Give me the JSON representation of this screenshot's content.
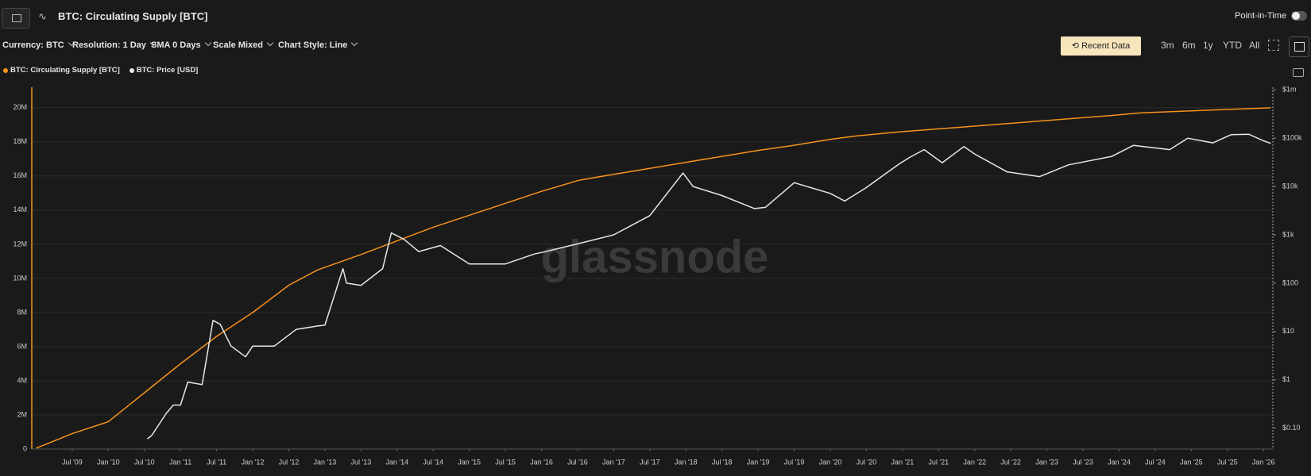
{
  "header": {
    "title": "BTC: Circulating Supply [BTC]",
    "point_in_time": "Point-in-Time"
  },
  "toolbar": {
    "options": [
      "Currency: BTC",
      "Resolution: 1 Day",
      "SMA 0 Days",
      "Scale Mixed",
      "Chart Style: Line"
    ],
    "recent_data": "Recent Data",
    "ranges": [
      "3m",
      "6m",
      "1y",
      "YTD",
      "All"
    ]
  },
  "watermark": "glassnode",
  "chart_data": {
    "type": "line",
    "grid": true,
    "xlim": [
      2008.94,
      2026.13
    ],
    "xticks": [
      {
        "value": 2009.5,
        "label": "Jul '09"
      },
      {
        "value": 2010.0,
        "label": "Jan '10"
      },
      {
        "value": 2010.5,
        "label": "Jul '10"
      },
      {
        "value": 2011.0,
        "label": "Jan '11"
      },
      {
        "value": 2011.5,
        "label": "Jul '11"
      },
      {
        "value": 2012.0,
        "label": "Jan '12"
      },
      {
        "value": 2012.5,
        "label": "Jul '12"
      },
      {
        "value": 2013.0,
        "label": "Jan '13"
      },
      {
        "value": 2013.5,
        "label": "Jul '13"
      },
      {
        "value": 2014.0,
        "label": "Jan '14"
      },
      {
        "value": 2014.5,
        "label": "Jul '14"
      },
      {
        "value": 2015.0,
        "label": "Jan '15"
      },
      {
        "value": 2015.5,
        "label": "Jul '15"
      },
      {
        "value": 2016.0,
        "label": "Jan '16"
      },
      {
        "value": 2016.5,
        "label": "Jul '16"
      },
      {
        "value": 2017.0,
        "label": "Jan '17"
      },
      {
        "value": 2017.5,
        "label": "Jul '17"
      },
      {
        "value": 2018.0,
        "label": "Jan '18"
      },
      {
        "value": 2018.5,
        "label": "Jul '18"
      },
      {
        "value": 2019.0,
        "label": "Jan '19"
      },
      {
        "value": 2019.5,
        "label": "Jul '19"
      },
      {
        "value": 2020.0,
        "label": "Jan '20"
      },
      {
        "value": 2020.5,
        "label": "Jul '20"
      },
      {
        "value": 2021.0,
        "label": "Jan '21"
      },
      {
        "value": 2021.5,
        "label": "Jul '21"
      },
      {
        "value": 2022.0,
        "label": "Jan '22"
      },
      {
        "value": 2022.5,
        "label": "Jul '22"
      },
      {
        "value": 2023.0,
        "label": "Jan '23"
      },
      {
        "value": 2023.5,
        "label": "Jul '23"
      },
      {
        "value": 2024.0,
        "label": "Jan '24"
      },
      {
        "value": 2024.5,
        "label": "Jul '24"
      },
      {
        "value": 2025.0,
        "label": "Jan '25"
      },
      {
        "value": 2025.5,
        "label": "Jul '25"
      },
      {
        "value": 2026.0,
        "label": "Jan '26"
      }
    ],
    "ylim": [
      0,
      21200000
    ],
    "yticks": [
      0,
      {
        "value": 2000000,
        "label": "2M"
      },
      {
        "value": 4000000,
        "label": "4M"
      },
      {
        "value": 6000000,
        "label": "6M"
      },
      {
        "value": 8000000,
        "label": "8M"
      },
      {
        "value": 10000000,
        "label": "10M"
      },
      {
        "value": 12000000,
        "label": "12M"
      },
      {
        "value": 14000000,
        "label": "14M"
      },
      {
        "value": 16000000,
        "label": "16M"
      },
      {
        "value": 18000000,
        "label": "18M"
      },
      {
        "value": 20000000,
        "label": "20M"
      }
    ],
    "y2lim": [
      0.037,
      1130000
    ],
    "y2log": true,
    "y2ticks": [
      {
        "value": 0.1,
        "label": "$0.10"
      },
      {
        "value": 1,
        "label": "$1"
      },
      {
        "value": 10,
        "label": "$10"
      },
      {
        "value": 100,
        "label": "$100"
      },
      {
        "value": 1000,
        "label": "$1k"
      },
      {
        "value": 10000,
        "label": "$10k"
      },
      {
        "value": 100000,
        "label": "$100k"
      },
      {
        "value": 1000000,
        "label": "$1m"
      }
    ],
    "series": [
      {
        "name": "BTC: Circulating Supply [BTC]",
        "color": "#f7931a",
        "x": [
          2009.0,
          2009.5,
          2010.0,
          2010.5,
          2011.0,
          2011.5,
          2012.0,
          2012.5,
          2012.9,
          2013.5,
          2014.0,
          2014.5,
          2015.0,
          2015.5,
          2016.0,
          2016.52,
          2017.0,
          2017.5,
          2018.0,
          2018.5,
          2019.0,
          2019.5,
          2020.0,
          2020.37,
          2021.0,
          2022.0,
          2023.0,
          2024.0,
          2024.3,
          2025.0,
          2026.0,
          2026.1
        ],
        "values": [
          50000,
          900000,
          1600000,
          3300000,
          5000000,
          6600000,
          8000000,
          9600000,
          10500000,
          11400000,
          12200000,
          13000000,
          13700000,
          14400000,
          15100000,
          15750000,
          16100000,
          16450000,
          16800000,
          17150000,
          17500000,
          17800000,
          18150000,
          18350000,
          18600000,
          18920000,
          19250000,
          19580000,
          19700000,
          19820000,
          19980000,
          20000000
        ]
      },
      {
        "name": "BTC: Price [USD]",
        "color": "#e8e8e8",
        "axis": "y2",
        "x": [
          2010.54,
          2010.6,
          2010.8,
          2010.9,
          2011.0,
          2011.1,
          2011.3,
          2011.45,
          2011.55,
          2011.7,
          2011.9,
          2012.0,
          2012.3,
          2012.6,
          2012.9,
          2013.0,
          2013.25,
          2013.3,
          2013.5,
          2013.8,
          2013.92,
          2014.1,
          2014.3,
          2014.6,
          2015.0,
          2015.5,
          2015.9,
          2016.0,
          2016.5,
          2017.0,
          2017.5,
          2017.96,
          2018.1,
          2018.5,
          2018.95,
          2019.1,
          2019.5,
          2020.0,
          2020.2,
          2020.5,
          2020.95,
          2021.1,
          2021.3,
          2021.55,
          2021.85,
          2022.0,
          2022.45,
          2022.9,
          2023.3,
          2023.9,
          2024.2,
          2024.7,
          2024.95,
          2025.3,
          2025.55,
          2025.8,
          2026.0,
          2026.1
        ],
        "values": [
          0.06,
          0.07,
          0.2,
          0.3,
          0.3,
          0.9,
          0.8,
          17,
          14,
          5,
          3,
          5,
          5,
          11,
          13,
          13.5,
          200,
          100,
          90,
          200,
          1100,
          800,
          450,
          600,
          250,
          250,
          400,
          430,
          650,
          1000,
          2500,
          19000,
          10000,
          6500,
          3500,
          3700,
          12000,
          7200,
          5000,
          9500,
          29000,
          40000,
          58000,
          31000,
          67000,
          47000,
          20000,
          16000,
          28000,
          42000,
          71000,
          58000,
          100000,
          80000,
          118000,
          120000,
          88000,
          78000
        ]
      }
    ]
  }
}
